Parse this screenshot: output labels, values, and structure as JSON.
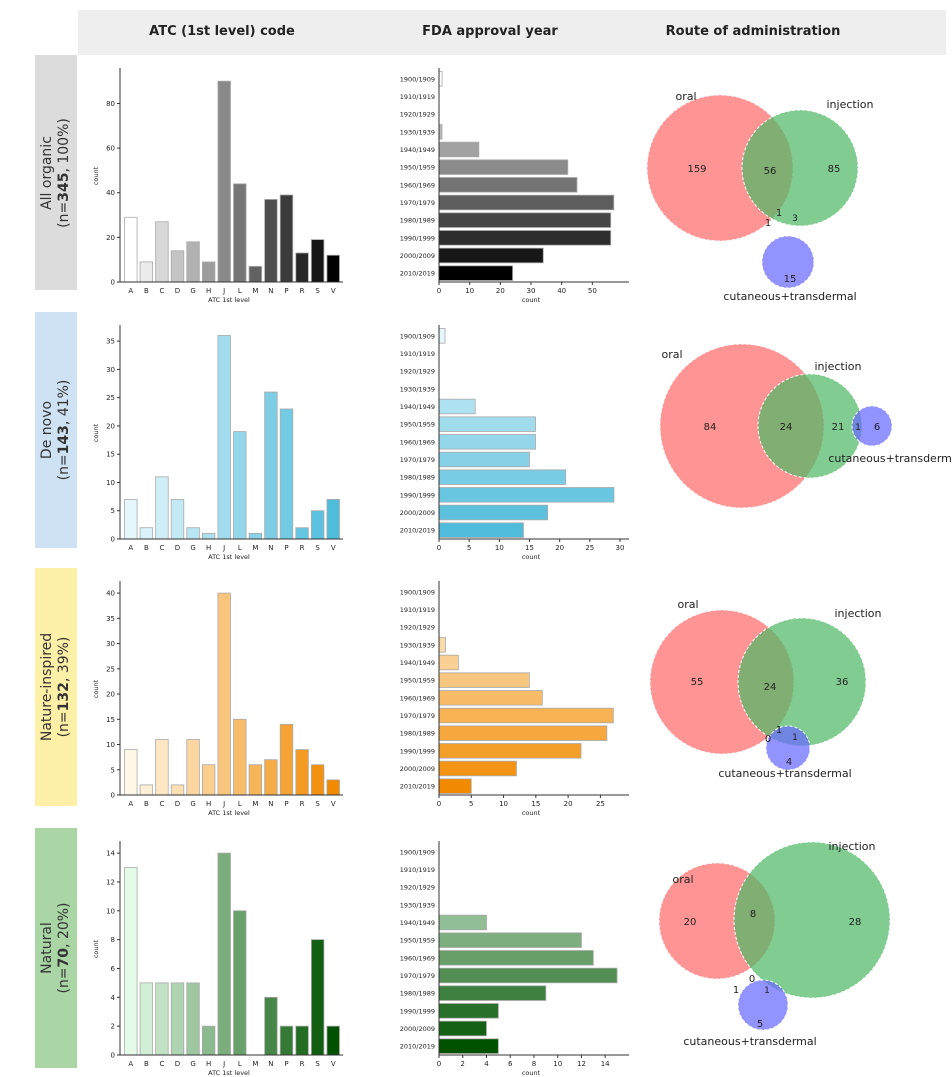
{
  "headers": [
    "ATC (1st level) code",
    "FDA approval year",
    "Route of administration"
  ],
  "atc_categories": [
    "A",
    "B",
    "C",
    "D",
    "G",
    "H",
    "J",
    "L",
    "M",
    "N",
    "P",
    "R",
    "S",
    "V"
  ],
  "year_categories": [
    "1900/1909",
    "1910/1919",
    "1920/1929",
    "1930/1939",
    "1940/1949",
    "1950/1959",
    "1960/1969",
    "1970/1979",
    "1980/1989",
    "1990/1999",
    "2000/2009",
    "2010/2019"
  ],
  "rows": [
    {
      "name": "All organic",
      "n_prefix": "(n=",
      "n": "345",
      "n_suffix": ", 100%)",
      "label_bg": "#dcdcdc",
      "palette": [
        "#ffffff",
        "#000000"
      ]
    },
    {
      "name": "De novo",
      "n_prefix": "(n=",
      "n": "143",
      "n_suffix": ", 41%)",
      "label_bg": "#cfe2f3",
      "palette": [
        "#e6f7fc",
        "#4fbcdb"
      ]
    },
    {
      "name": "Nature-inspired",
      "n_prefix": "(n=",
      "n": "132",
      "n_suffix": ", 39%)",
      "label_bg": "#fff0a8",
      "palette": [
        "#fff8e8",
        "#f28a00"
      ]
    },
    {
      "name": "Natural",
      "n_prefix": "(n=",
      "n": "70",
      "n_suffix": ", 20%)",
      "label_bg": "#a9d6a4",
      "palette": [
        "#e4fbe8",
        "#005200"
      ]
    }
  ],
  "chart_data": [
    {
      "type": "bar",
      "row": 0,
      "panel": "atc",
      "xlabel": "ATC 1st level",
      "ylabel": "count",
      "values": [
        29,
        9,
        27,
        14,
        18,
        9,
        90,
        44,
        7,
        37,
        39,
        13,
        19,
        12
      ],
      "ylim": [
        0,
        95
      ],
      "ticks": [
        0,
        20,
        40,
        60,
        80
      ]
    },
    {
      "type": "bar",
      "row": 0,
      "panel": "year",
      "orientation": "horizontal",
      "xlabel": "count",
      "values": [
        1,
        0,
        0,
        1,
        13,
        42,
        45,
        57,
        56,
        56,
        34,
        24
      ],
      "xlim": [
        0,
        60
      ],
      "ticks": [
        0,
        10,
        20,
        30,
        40,
        50
      ]
    },
    {
      "type": "bar",
      "row": 1,
      "panel": "atc",
      "xlabel": "ATC 1st level",
      "ylabel": "count",
      "values": [
        7,
        2,
        11,
        7,
        2,
        1,
        36,
        19,
        1,
        26,
        23,
        2,
        5,
        7
      ],
      "ylim": [
        0,
        37.5
      ],
      "ticks": [
        0,
        5,
        10,
        15,
        20,
        25,
        30,
        35
      ]
    },
    {
      "type": "bar",
      "row": 1,
      "panel": "year",
      "orientation": "horizontal",
      "xlabel": "count",
      "values": [
        1,
        0,
        0,
        0,
        6,
        16,
        16,
        15,
        21,
        29,
        18,
        14
      ],
      "xlim": [
        0,
        30.5
      ],
      "ticks": [
        0,
        5,
        10,
        15,
        20,
        25,
        30
      ]
    },
    {
      "type": "bar",
      "row": 2,
      "panel": "atc",
      "xlabel": "ATC 1st level",
      "ylabel": "count",
      "values": [
        9,
        2,
        11,
        2,
        11,
        6,
        40,
        15,
        6,
        7,
        14,
        9,
        6,
        3
      ],
      "ylim": [
        0,
        42
      ],
      "ticks": [
        0,
        5,
        10,
        15,
        20,
        25,
        30,
        35,
        40
      ]
    },
    {
      "type": "bar",
      "row": 2,
      "panel": "year",
      "orientation": "horizontal",
      "xlabel": "count",
      "values": [
        0,
        0,
        0,
        1,
        3,
        14,
        16,
        27,
        26,
        22,
        12,
        5
      ],
      "xlim": [
        0,
        28.5
      ],
      "ticks": [
        0,
        5,
        10,
        15,
        20,
        25
      ]
    },
    {
      "type": "bar",
      "row": 3,
      "panel": "atc",
      "xlabel": "ATC 1st level",
      "ylabel": "count",
      "values": [
        13,
        5,
        5,
        5,
        5,
        2,
        14,
        10,
        0,
        4,
        2,
        2,
        8,
        2
      ],
      "ylim": [
        0,
        14.7
      ],
      "ticks": [
        0,
        2,
        4,
        6,
        8,
        10,
        12,
        14
      ]
    },
    {
      "type": "bar",
      "row": 3,
      "panel": "year",
      "orientation": "horizontal",
      "xlabel": "count",
      "values": [
        0,
        0,
        0,
        0,
        4,
        12,
        13,
        15,
        9,
        5,
        4,
        5
      ],
      "xlim": [
        0,
        15.5
      ],
      "ticks": [
        0,
        2,
        4,
        6,
        8,
        10,
        12,
        14
      ]
    }
  ],
  "venn_labels": {
    "oral": "oral",
    "injection": "injection",
    "cutaneous": "cutaneous+transdermal"
  },
  "venn_colors": {
    "oral": "#ff6b6b",
    "injection": "#4fb866",
    "cutaneous": "#6a6aff"
  },
  "venns": [
    {
      "oral_only": "159",
      "oral_injection": "56",
      "injection_only": "85",
      "all_three": "1",
      "oral_cutaneous": "1",
      "injection_cutaneous": "3",
      "cutaneous_only": "15"
    },
    {
      "oral_only": "84",
      "oral_injection": "24",
      "injection_only": "21",
      "injection_cutaneous": "1",
      "cutaneous_only": "6"
    },
    {
      "oral_only": "55",
      "oral_injection": "24",
      "injection_only": "36",
      "all_three": "1",
      "oral_cutaneous": "0",
      "injection_cutaneous": "1",
      "cutaneous_only": "4"
    },
    {
      "oral_only": "20",
      "oral_injection": "8",
      "injection_only": "28",
      "all_three": "0",
      "oral_cutaneous": "1",
      "injection_cutaneous": "1",
      "cutaneous_only": "5"
    }
  ]
}
